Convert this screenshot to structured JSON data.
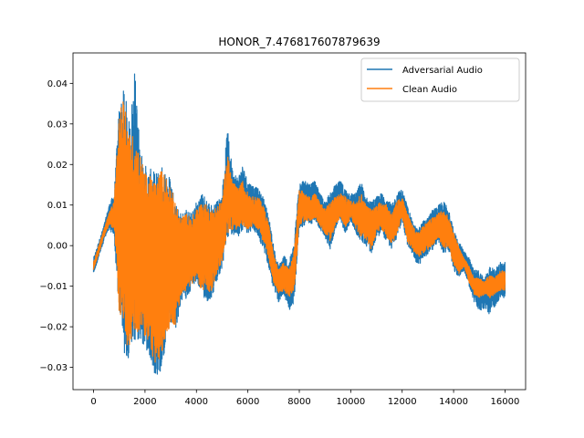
{
  "chart_data": {
    "type": "line",
    "title": "HONOR_7.476817607879639",
    "xlabel": "",
    "ylabel": "",
    "xlim": [
      -800,
      16800
    ],
    "ylim": [
      -0.0355,
      0.0475
    ],
    "xticks": [
      0,
      2000,
      4000,
      6000,
      8000,
      10000,
      12000,
      14000,
      16000
    ],
    "xtick_labels": [
      "0",
      "2000",
      "4000",
      "6000",
      "8000",
      "10000",
      "12000",
      "14000",
      "16000"
    ],
    "yticks": [
      -0.03,
      -0.02,
      -0.01,
      0.0,
      0.01,
      0.02,
      0.03,
      0.04
    ],
    "ytick_labels": [
      "−0.03",
      "−0.02",
      "−0.01",
      "0.00",
      "0.01",
      "0.02",
      "0.03",
      "0.04"
    ],
    "grid": false,
    "legend_position": "upper right",
    "series": [
      {
        "name": "Adversarial Audio",
        "color": "#1f77b4",
        "envelope": {
          "x": [
            0,
            200,
            400,
            600,
            800,
            1000,
            1200,
            1400,
            1600,
            1800,
            2000,
            2200,
            2400,
            2600,
            2800,
            3000,
            3200,
            3400,
            3600,
            3800,
            4000,
            4200,
            4400,
            4600,
            4800,
            5000,
            5200,
            5400,
            5600,
            5800,
            6000,
            6200,
            6400,
            6600,
            6800,
            7000,
            7200,
            7400,
            7600,
            7800,
            8000,
            8200,
            8400,
            8600,
            8800,
            9000,
            9200,
            9400,
            9600,
            9800,
            10000,
            10200,
            10400,
            10600,
            10800,
            11000,
            11200,
            11400,
            11600,
            11800,
            12000,
            12200,
            12400,
            12600,
            12800,
            13000,
            13200,
            13400,
            13600,
            13800,
            14000,
            14200,
            14400,
            14600,
            14800,
            15000,
            15200,
            15400,
            15600,
            15800,
            16000
          ],
          "low": [
            -0.007,
            -0.003,
            0.001,
            0.004,
            0.002,
            -0.018,
            -0.027,
            -0.028,
            -0.025,
            -0.023,
            -0.026,
            -0.029,
            -0.032,
            -0.032,
            -0.025,
            -0.02,
            -0.021,
            -0.014,
            -0.013,
            -0.011,
            -0.009,
            -0.012,
            -0.014,
            -0.013,
            -0.009,
            -0.006,
            0.002,
            0.003,
            0.002,
            0.004,
            0.003,
            0.004,
            0.002,
            -0.001,
            -0.005,
            -0.011,
            -0.014,
            -0.012,
            -0.016,
            -0.014,
            0.004,
            0.005,
            0.005,
            0.006,
            0.004,
            0.002,
            -0.001,
            0.004,
            0.006,
            0.003,
            0.006,
            0.003,
            0.001,
            0.0,
            -0.002,
            0.002,
            0.003,
            0.001,
            -0.001,
            0.002,
            0.006,
            0.0,
            -0.002,
            -0.005,
            -0.004,
            -0.002,
            -0.001,
            0.001,
            -0.002,
            -0.001,
            -0.006,
            -0.008,
            -0.006,
            -0.01,
            -0.014,
            -0.016,
            -0.016,
            -0.017,
            -0.015,
            -0.013,
            -0.013
          ],
          "high": [
            -0.003,
            0.001,
            0.005,
            0.01,
            0.013,
            0.035,
            0.039,
            0.03,
            0.044,
            0.025,
            0.02,
            0.019,
            0.018,
            0.02,
            0.019,
            0.017,
            0.011,
            0.008,
            0.009,
            0.008,
            0.011,
            0.013,
            0.012,
            0.01,
            0.011,
            0.013,
            0.029,
            0.019,
            0.017,
            0.02,
            0.016,
            0.015,
            0.014,
            0.012,
            0.008,
            0.0,
            -0.005,
            -0.002,
            -0.004,
            0.001,
            0.017,
            0.016,
            0.015,
            0.016,
            0.013,
            0.011,
            0.013,
            0.015,
            0.016,
            0.014,
            0.013,
            0.013,
            0.016,
            0.012,
            0.011,
            0.012,
            0.013,
            0.012,
            0.01,
            0.013,
            0.014,
            0.01,
            0.006,
            0.004,
            0.006,
            0.007,
            0.009,
            0.01,
            0.011,
            0.009,
            0.004,
            0.001,
            -0.001,
            -0.003,
            -0.006,
            -0.006,
            -0.008,
            -0.005,
            -0.006,
            -0.004,
            -0.004
          ]
        }
      },
      {
        "name": "Clean Audio",
        "color": "#ff7f0e",
        "envelope": {
          "x": [
            0,
            200,
            400,
            600,
            800,
            1000,
            1200,
            1400,
            1600,
            1800,
            2000,
            2200,
            2400,
            2600,
            2800,
            3000,
            3200,
            3400,
            3600,
            3800,
            4000,
            4200,
            4400,
            4600,
            4800,
            5000,
            5200,
            5400,
            5600,
            5800,
            6000,
            6200,
            6400,
            6600,
            6800,
            7000,
            7200,
            7400,
            7600,
            7800,
            8000,
            8200,
            8400,
            8600,
            8800,
            9000,
            9200,
            9400,
            9600,
            9800,
            10000,
            10200,
            10400,
            10600,
            10800,
            11000,
            11200,
            11400,
            11600,
            11800,
            12000,
            12200,
            12400,
            12600,
            12800,
            13000,
            13200,
            13400,
            13600,
            13800,
            14000,
            14200,
            14400,
            14600,
            14800,
            15000,
            15200,
            15400,
            15600,
            15800,
            16000
          ],
          "low": [
            -0.006,
            -0.002,
            0.002,
            0.005,
            0.004,
            -0.017,
            -0.025,
            -0.026,
            -0.022,
            -0.021,
            -0.023,
            -0.025,
            -0.03,
            -0.029,
            -0.023,
            -0.019,
            -0.02,
            -0.012,
            -0.011,
            -0.01,
            -0.008,
            -0.011,
            -0.012,
            -0.011,
            -0.007,
            -0.004,
            0.003,
            0.004,
            0.004,
            0.005,
            0.004,
            0.005,
            0.004,
            0.001,
            -0.003,
            -0.009,
            -0.012,
            -0.011,
            -0.013,
            -0.011,
            0.005,
            0.006,
            0.006,
            0.007,
            0.005,
            0.003,
            0.001,
            0.005,
            0.007,
            0.004,
            0.007,
            0.004,
            0.002,
            0.001,
            -0.001,
            0.003,
            0.004,
            0.002,
            0.0,
            0.003,
            0.007,
            0.001,
            -0.001,
            -0.003,
            -0.002,
            -0.001,
            0.0,
            0.002,
            -0.001,
            0.0,
            -0.005,
            -0.007,
            -0.005,
            -0.009,
            -0.012,
            -0.013,
            -0.012,
            -0.013,
            -0.012,
            -0.011,
            -0.011
          ],
          "high": [
            -0.004,
            0.0,
            0.004,
            0.008,
            0.011,
            0.032,
            0.038,
            0.028,
            0.027,
            0.023,
            0.018,
            0.017,
            0.016,
            0.019,
            0.018,
            0.015,
            0.01,
            0.007,
            0.008,
            0.007,
            0.009,
            0.011,
            0.01,
            0.009,
            0.01,
            0.011,
            0.023,
            0.016,
            0.014,
            0.016,
            0.013,
            0.012,
            0.012,
            0.01,
            0.006,
            -0.002,
            -0.006,
            -0.004,
            -0.006,
            -0.001,
            0.014,
            0.013,
            0.012,
            0.013,
            0.011,
            0.009,
            0.011,
            0.012,
            0.013,
            0.012,
            0.011,
            0.011,
            0.013,
            0.01,
            0.009,
            0.01,
            0.011,
            0.01,
            0.008,
            0.011,
            0.012,
            0.008,
            0.005,
            0.003,
            0.005,
            0.006,
            0.007,
            0.008,
            0.009,
            0.007,
            0.003,
            0.0,
            -0.003,
            -0.005,
            -0.008,
            -0.008,
            -0.009,
            -0.007,
            -0.008,
            -0.006,
            -0.006
          ]
        }
      }
    ]
  }
}
